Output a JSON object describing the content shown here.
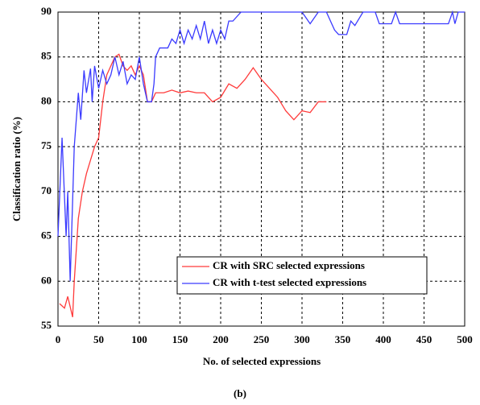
{
  "chart_data": {
    "type": "line",
    "xlabel": "No. of selected expressions",
    "ylabel": "Classification ratio (%)",
    "caption": "(b)",
    "xlim": [
      0,
      500
    ],
    "xticks": [
      0,
      50,
      100,
      150,
      200,
      250,
      300,
      350,
      400,
      450,
      500
    ],
    "ylim": [
      55,
      90
    ],
    "yticks": [
      55,
      60,
      65,
      70,
      75,
      80,
      85,
      90
    ],
    "grid": true,
    "legend": "lower right",
    "series": [
      {
        "name": "CR with SRC selected expressions",
        "color": "#ff3b3b",
        "x": [
          2,
          8,
          12,
          18,
          20,
          25,
          30,
          35,
          40,
          45,
          50,
          55,
          60,
          65,
          70,
          75,
          80,
          85,
          90,
          95,
          100,
          105,
          110,
          115,
          120,
          130,
          140,
          150,
          160,
          170,
          180,
          190,
          200,
          210,
          220,
          230,
          240,
          250,
          260,
          270,
          280,
          290,
          300,
          310,
          320,
          330
        ],
        "values": [
          57.5,
          57,
          58.3,
          56,
          60,
          67,
          70,
          72,
          73.5,
          75,
          76,
          80,
          83,
          84,
          85,
          85.3,
          84,
          83.5,
          84,
          83,
          84,
          83,
          80,
          80,
          81,
          81,
          81.3,
          81,
          81.2,
          81,
          81,
          80,
          80.5,
          82,
          81.5,
          82.5,
          83.8,
          82.5,
          81.5,
          80.5,
          79,
          78,
          79,
          78.8,
          80,
          80
        ]
      },
      {
        "name": "CR with t-test selected expressions",
        "color": "#3a3aff",
        "x": [
          0,
          5,
          10,
          12,
          15,
          20,
          25,
          28,
          32,
          35,
          40,
          42,
          45,
          50,
          55,
          60,
          65,
          70,
          75,
          80,
          85,
          90,
          95,
          100,
          105,
          110,
          115,
          118,
          120,
          125,
          135,
          140,
          145,
          150,
          155,
          160,
          165,
          170,
          175,
          180,
          185,
          190,
          195,
          200,
          205,
          210,
          215,
          225,
          300,
          310,
          320,
          330,
          340,
          345,
          355,
          360,
          365,
          375,
          390,
          395,
          410,
          415,
          420,
          480,
          485,
          488,
          492,
          500
        ],
        "values": [
          65,
          76,
          65,
          70,
          60,
          75,
          81,
          78,
          83.5,
          81,
          83.7,
          80,
          84,
          81.5,
          83.5,
          82,
          83,
          85,
          83,
          84.5,
          82,
          83,
          82.5,
          85,
          82,
          80,
          80,
          82,
          85,
          86,
          86,
          87,
          86.5,
          88,
          86.5,
          88,
          87,
          88.5,
          87,
          89,
          86.5,
          88,
          86.5,
          88,
          87,
          89,
          89,
          90,
          90,
          88.7,
          90,
          90,
          88,
          87.5,
          87.5,
          89,
          88.5,
          90,
          90,
          88.7,
          88.7,
          90,
          88.7,
          88.7,
          90,
          88.7,
          90,
          90
        ]
      }
    ]
  }
}
